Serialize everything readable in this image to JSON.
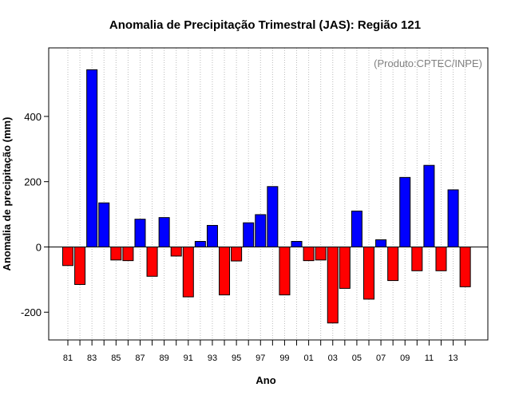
{
  "chart_data": {
    "type": "bar",
    "title": "Anomalia de Precipitação Trimestral (JAS): Região 121",
    "xlabel": "Ano",
    "ylabel": "Anomalia de precipitação (mm)",
    "annotation": "(Produto:CPTEC/INPE)",
    "ylim": [
      -285,
      610
    ],
    "yticks": [
      -200,
      0,
      200,
      400
    ],
    "grid": "vertical-dotted",
    "legend": "none",
    "categories": [
      "81",
      "82",
      "83",
      "84",
      "85",
      "86",
      "87",
      "88",
      "89",
      "90",
      "91",
      "92",
      "93",
      "94",
      "95",
      "96",
      "97",
      "98",
      "99",
      "00",
      "01",
      "02",
      "03",
      "04",
      "05",
      "06",
      "07",
      "08",
      "09",
      "10",
      "11",
      "12",
      "13",
      "14"
    ],
    "xtick_labels": [
      "81",
      "83",
      "85",
      "87",
      "89",
      "91",
      "93",
      "95",
      "97",
      "99",
      "01",
      "03",
      "05",
      "07",
      "09",
      "11",
      "13"
    ],
    "values": [
      -57,
      -115,
      543,
      135,
      -40,
      -42,
      85,
      -90,
      90,
      -28,
      -153,
      17,
      66,
      -147,
      -43,
      74,
      99,
      185,
      -147,
      17,
      -42,
      -40,
      -233,
      -127,
      110,
      -160,
      22,
      -103,
      213,
      -73,
      250,
      -73,
      175,
      -122
    ],
    "colors": {
      "positive": "#0000ff",
      "negative": "#ff0000",
      "grid": "#bbbbbb",
      "annotation": "#808080"
    }
  }
}
